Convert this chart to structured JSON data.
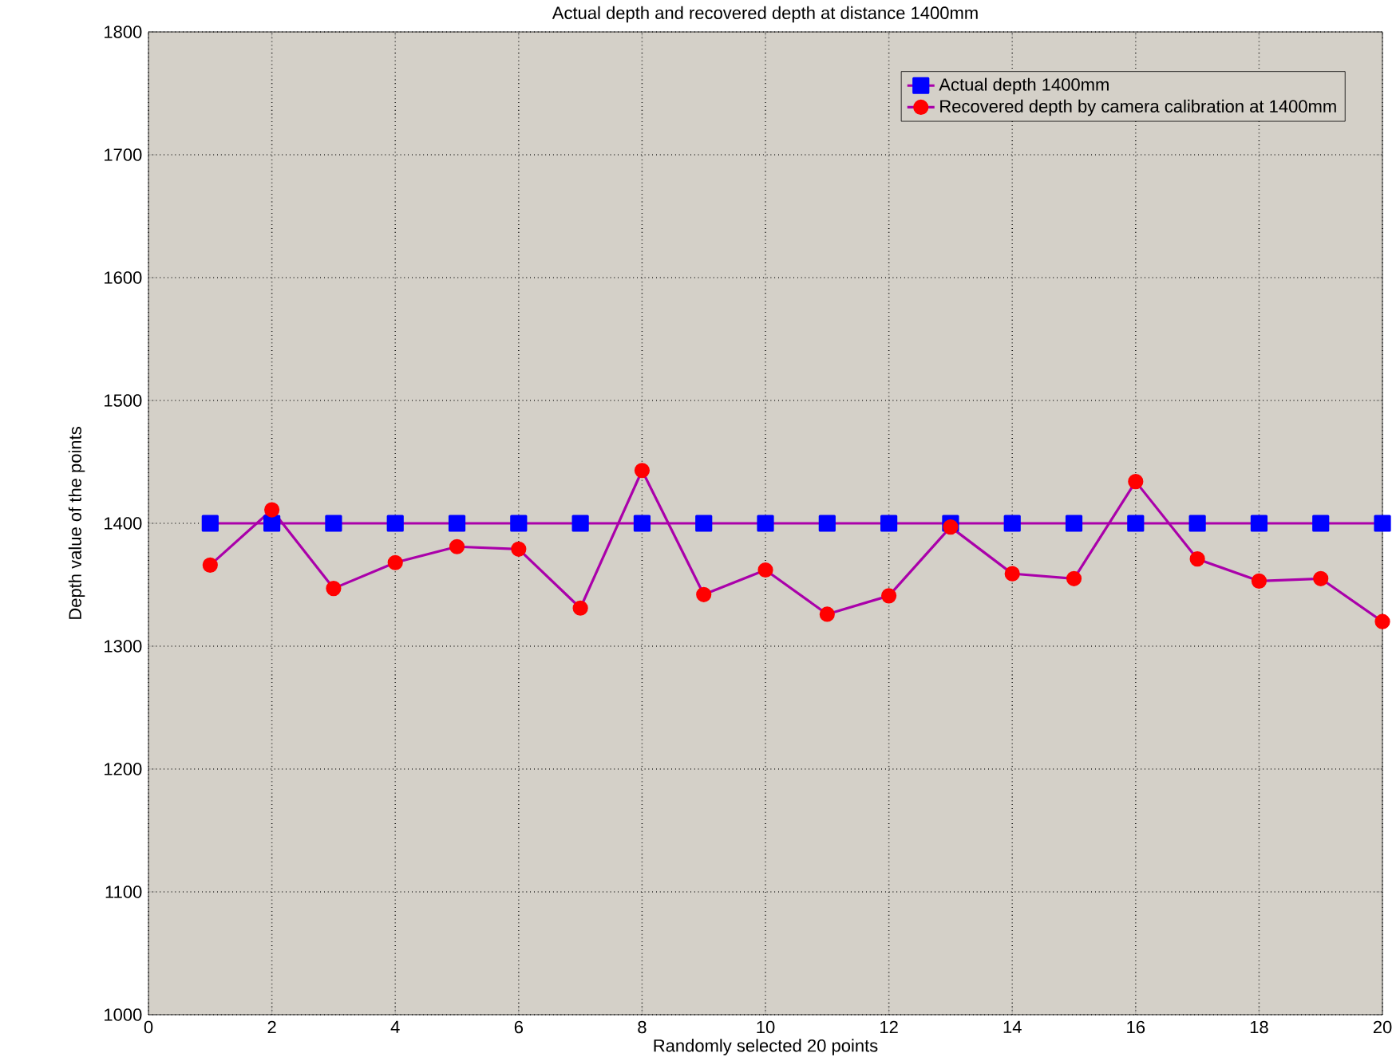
{
  "chart_data": {
    "type": "line",
    "title": "Actual depth and recovered depth at distance 1400mm",
    "xlabel": "Randomly selected 20 points",
    "ylabel": "Depth value of the points",
    "x": [
      1,
      2,
      3,
      4,
      5,
      6,
      7,
      8,
      9,
      10,
      11,
      12,
      13,
      14,
      15,
      16,
      17,
      18,
      19,
      20
    ],
    "series": [
      {
        "name": "Actual depth 1400mm",
        "color": "#0000ff",
        "marker": "square",
        "values": [
          1400,
          1400,
          1400,
          1400,
          1400,
          1400,
          1400,
          1400,
          1400,
          1400,
          1400,
          1400,
          1400,
          1400,
          1400,
          1400,
          1400,
          1400,
          1400,
          1400
        ]
      },
      {
        "name": "Recovered depth by camera calibration at 1400mm",
        "color": "#ff0000",
        "marker": "circle",
        "values": [
          1366,
          1411,
          1347,
          1368,
          1381,
          1379,
          1331,
          1443,
          1342,
          1362,
          1326,
          1341,
          1397,
          1359,
          1355,
          1434,
          1371,
          1353,
          1355,
          1320
        ]
      }
    ],
    "xlim": [
      0,
      20
    ],
    "ylim": [
      1000,
      1800
    ],
    "xticks": [
      0,
      2,
      4,
      6,
      8,
      10,
      12,
      14,
      16,
      18,
      20
    ],
    "yticks": [
      1000,
      1100,
      1200,
      1300,
      1400,
      1500,
      1600,
      1700,
      1800
    ],
    "grid": true,
    "legend": "top right"
  }
}
